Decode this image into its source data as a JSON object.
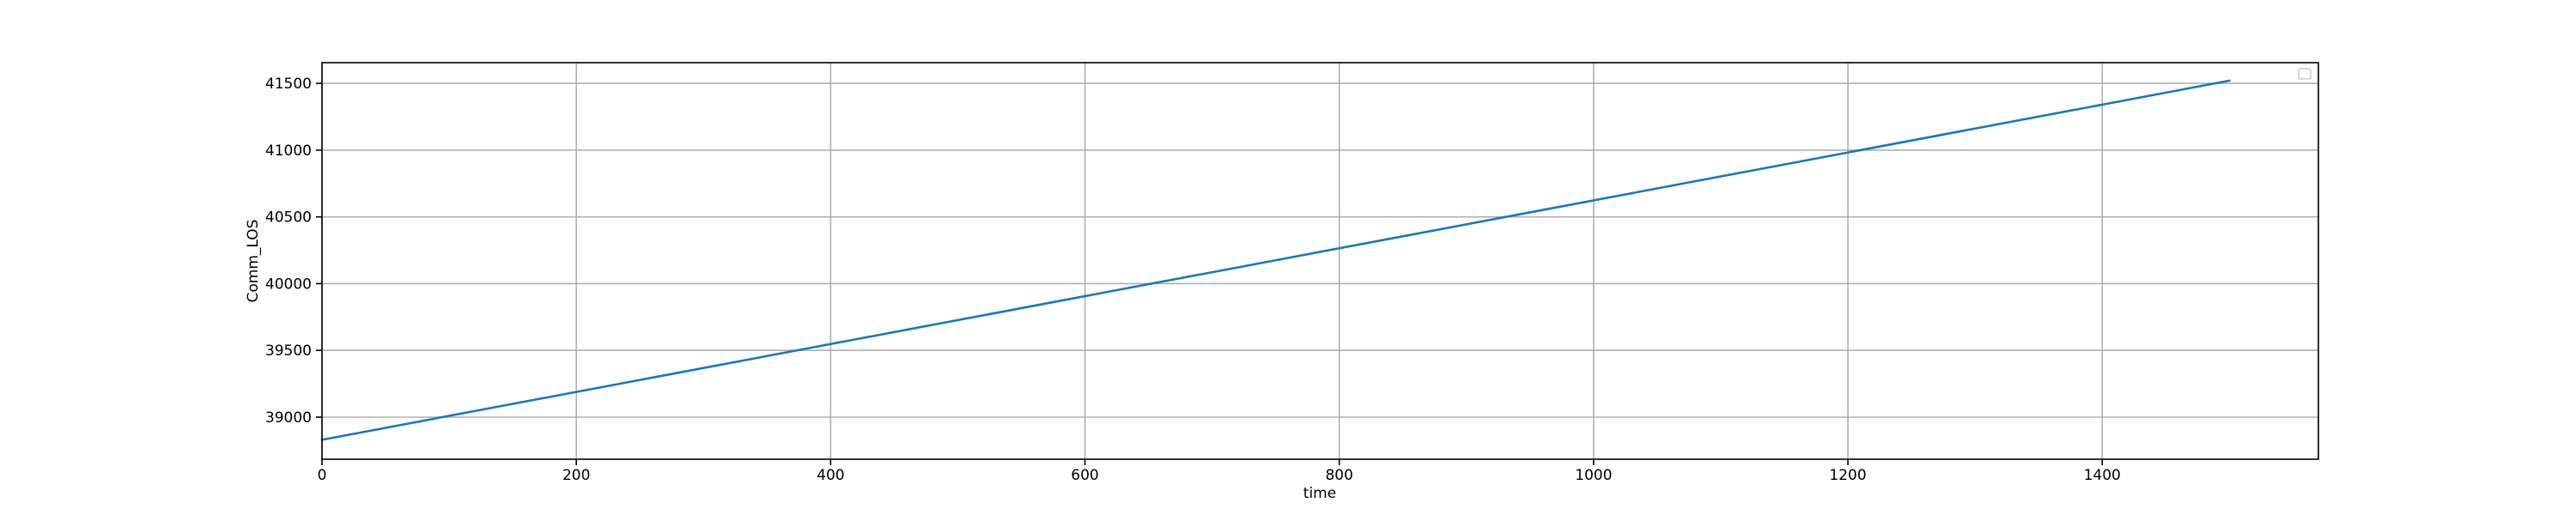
{
  "chart_data": {
    "type": "line",
    "title": "",
    "xlabel": "time",
    "ylabel": "Comm_LOS",
    "xlim": [
      0,
      1570
    ],
    "ylim": [
      38685,
      41655
    ],
    "xticks": [
      0,
      200,
      400,
      600,
      800,
      1000,
      1200,
      1400
    ],
    "yticks": [
      39000,
      39500,
      40000,
      40500,
      41000,
      41500
    ],
    "grid": true,
    "legend": "top-right",
    "series": [
      {
        "color": "#1f77b4",
        "x": [
          0,
          1500
        ],
        "y": [
          38830,
          41520
        ]
      }
    ]
  }
}
